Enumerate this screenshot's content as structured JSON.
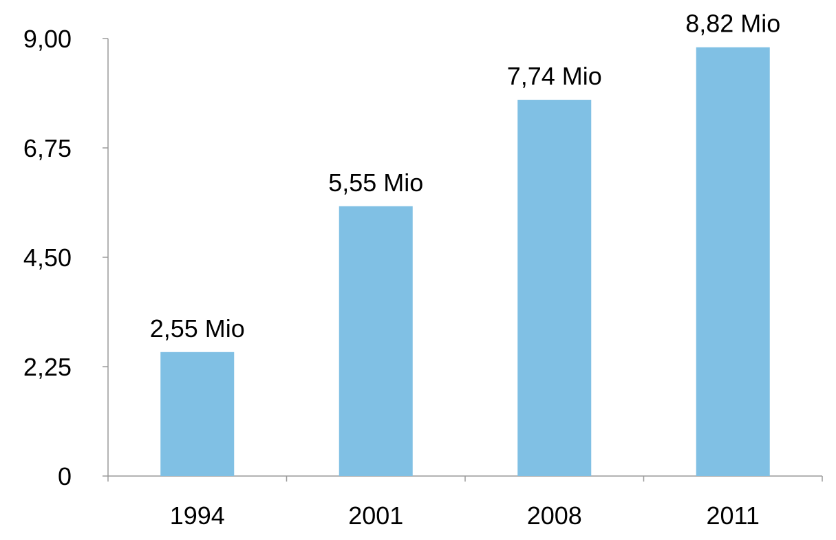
{
  "chart_data": {
    "type": "bar",
    "categories": [
      "1994",
      "2001",
      "2008",
      "2011"
    ],
    "values": [
      2.55,
      5.55,
      7.74,
      8.82
    ],
    "data_labels": [
      "2,55 Mio",
      "5,55 Mio",
      "7,74 Mio",
      "8,82 Mio"
    ],
    "y_ticks": [
      "0",
      "2,25",
      "4,50",
      "6,75",
      "9,00"
    ],
    "y_tick_values": [
      0,
      2.25,
      4.5,
      6.75,
      9
    ],
    "ylim": [
      0,
      9
    ],
    "title": "",
    "xlabel": "",
    "ylabel": "",
    "grid": false,
    "legend": "none",
    "bar_color": "#80c0e4",
    "axis_color": "#9a9a9a"
  }
}
